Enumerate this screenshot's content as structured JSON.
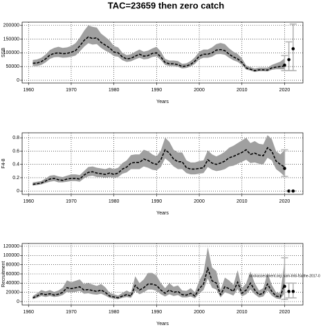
{
  "title": "TAC=23659 then zero catch",
  "chart_data": [
    {
      "type": "line",
      "xlabel": "Years",
      "ylabel": "SSB",
      "x": [
        1961,
        1962,
        1963,
        1964,
        1965,
        1966,
        1967,
        1968,
        1969,
        1970,
        1971,
        1972,
        1973,
        1974,
        1975,
        1976,
        1977,
        1978,
        1979,
        1980,
        1981,
        1982,
        1983,
        1984,
        1985,
        1986,
        1987,
        1988,
        1989,
        1990,
        1991,
        1992,
        1993,
        1994,
        1995,
        1996,
        1997,
        1998,
        1999,
        2000,
        2001,
        2002,
        2003,
        2004,
        2005,
        2006,
        2007,
        2008,
        2009,
        2010,
        2011,
        2012,
        2013,
        2014,
        2015,
        2016,
        2017,
        2018,
        2019,
        2020
      ],
      "series": [
        {
          "color": "#000000",
          "band_color": "#a0a0a0",
          "values": [
            62000,
            63000,
            68000,
            78000,
            92000,
            98000,
            100000,
            97000,
            98000,
            102000,
            108000,
            125000,
            145000,
            158000,
            152000,
            155000,
            138000,
            128000,
            118000,
            103000,
            100000,
            85000,
            78000,
            80000,
            88000,
            95000,
            88000,
            90000,
            98000,
            100000,
            85000,
            65000,
            60000,
            60000,
            57000,
            50000,
            52000,
            58000,
            70000,
            88000,
            95000,
            95000,
            100000,
            110000,
            112000,
            108000,
            95000,
            85000,
            78000,
            65000,
            45000,
            40000,
            35000,
            38000,
            38000,
            37000,
            45000,
            48000,
            50000,
            52000
          ],
          "lower": [
            52000,
            52000,
            56000,
            65000,
            78000,
            84000,
            85000,
            82000,
            83000,
            86000,
            90000,
            105000,
            122000,
            135000,
            130000,
            132000,
            118000,
            108000,
            100000,
            88000,
            86000,
            73000,
            67000,
            69000,
            76000,
            82000,
            76000,
            78000,
            85000,
            87000,
            74000,
            56000,
            52000,
            52000,
            49000,
            43000,
            45000,
            50000,
            60000,
            76000,
            82000,
            82000,
            86000,
            95000,
            96000,
            93000,
            82000,
            73000,
            67000,
            56000,
            39000,
            35000,
            30000,
            33000,
            33000,
            32000,
            38000,
            40000,
            40000,
            40000
          ],
          "upper": [
            74000,
            76000,
            82000,
            94000,
            110000,
            118000,
            122000,
            118000,
            120000,
            125000,
            135000,
            155000,
            180000,
            200000,
            195000,
            192000,
            170000,
            158000,
            145000,
            125000,
            120000,
            100000,
            92000,
            95000,
            104000,
            112000,
            104000,
            108000,
            116000,
            122000,
            104000,
            78000,
            72000,
            72000,
            70000,
            60000,
            62000,
            70000,
            84000,
            104000,
            112000,
            112000,
            120000,
            132000,
            136000,
            132000,
            116000,
            104000,
            96000,
            80000,
            54000,
            48000,
            43000,
            46000,
            46000,
            46000,
            56000,
            62000,
            68000,
            80000
          ]
        }
      ],
      "points": {
        "color": "#000000",
        "bar_color": "#b0b0b0",
        "x": [
          2020,
          2021,
          2022
        ],
        "values": [
          55000,
          75000,
          115000
        ],
        "lower": [
          35000,
          35000,
          35000
        ],
        "upper": [
          90000,
          140000,
          205000
        ]
      },
      "xlim": [
        1958.5,
        2024.3
      ],
      "ylim": [
        -10000,
        212000
      ],
      "xticks": [
        1960,
        1970,
        1980,
        1990,
        2000,
        2010,
        2020
      ],
      "yticks": [
        0,
        50000,
        100000,
        150000,
        200000
      ],
      "grid": true
    },
    {
      "type": "line",
      "xlabel": "Years",
      "ylabel": "F4-8",
      "x": [
        1961,
        1962,
        1963,
        1964,
        1965,
        1966,
        1967,
        1968,
        1969,
        1970,
        1971,
        1972,
        1973,
        1974,
        1975,
        1976,
        1977,
        1978,
        1979,
        1980,
        1981,
        1982,
        1983,
        1984,
        1985,
        1986,
        1987,
        1988,
        1989,
        1990,
        1991,
        1992,
        1993,
        1994,
        1995,
        1996,
        1997,
        1998,
        1999,
        2000,
        2001,
        2002,
        2003,
        2004,
        2005,
        2006,
        2007,
        2008,
        2009,
        2010,
        2011,
        2012,
        2013,
        2014,
        2015,
        2016,
        2017,
        2018,
        2019,
        2020
      ],
      "series": [
        {
          "color": "#000000",
          "band_color": "#a0a0a0",
          "values": [
            0.1,
            0.11,
            0.12,
            0.15,
            0.18,
            0.19,
            0.17,
            0.16,
            0.18,
            0.19,
            0.19,
            0.18,
            0.24,
            0.28,
            0.29,
            0.27,
            0.26,
            0.25,
            0.27,
            0.25,
            0.27,
            0.33,
            0.36,
            0.42,
            0.43,
            0.43,
            0.48,
            0.46,
            0.42,
            0.4,
            0.47,
            0.62,
            0.57,
            0.48,
            0.44,
            0.44,
            0.35,
            0.33,
            0.33,
            0.34,
            0.35,
            0.47,
            0.42,
            0.4,
            0.42,
            0.45,
            0.5,
            0.52,
            0.55,
            0.58,
            0.62,
            0.55,
            0.57,
            0.54,
            0.53,
            0.65,
            0.6,
            0.45,
            0.4,
            0.36
          ],
          "lower": [
            0.08,
            0.09,
            0.1,
            0.12,
            0.14,
            0.15,
            0.13,
            0.13,
            0.14,
            0.15,
            0.15,
            0.14,
            0.19,
            0.22,
            0.23,
            0.21,
            0.21,
            0.2,
            0.21,
            0.2,
            0.21,
            0.26,
            0.28,
            0.33,
            0.33,
            0.33,
            0.37,
            0.35,
            0.32,
            0.31,
            0.36,
            0.49,
            0.44,
            0.37,
            0.33,
            0.33,
            0.27,
            0.25,
            0.25,
            0.26,
            0.27,
            0.36,
            0.32,
            0.3,
            0.31,
            0.33,
            0.37,
            0.38,
            0.41,
            0.44,
            0.47,
            0.42,
            0.43,
            0.41,
            0.4,
            0.5,
            0.46,
            0.33,
            0.28,
            0.22
          ],
          "upper": [
            0.13,
            0.14,
            0.15,
            0.19,
            0.23,
            0.24,
            0.22,
            0.21,
            0.23,
            0.25,
            0.25,
            0.24,
            0.3,
            0.36,
            0.37,
            0.35,
            0.34,
            0.33,
            0.35,
            0.33,
            0.35,
            0.42,
            0.46,
            0.54,
            0.55,
            0.55,
            0.62,
            0.6,
            0.55,
            0.52,
            0.61,
            0.8,
            0.74,
            0.62,
            0.58,
            0.58,
            0.46,
            0.43,
            0.43,
            0.45,
            0.46,
            0.61,
            0.55,
            0.52,
            0.55,
            0.59,
            0.65,
            0.68,
            0.72,
            0.76,
            0.8,
            0.72,
            0.75,
            0.71,
            0.7,
            0.84,
            0.78,
            0.6,
            0.55,
            0.62
          ]
        }
      ],
      "points": {
        "color": "#000000",
        "bar_color": "#b0b0b0",
        "x": [
          2020,
          2021,
          2022
        ],
        "values": [
          0.34,
          0,
          0
        ],
        "lower": [
          0.22,
          0,
          0
        ],
        "upper": [
          0.62,
          0,
          0
        ]
      },
      "xlim": [
        1958.5,
        2024.3
      ],
      "ylim": [
        -0.05,
        0.875
      ],
      "xticks": [
        1960,
        1970,
        1980,
        1990,
        2000,
        2010,
        2020
      ],
      "yticks": [
        0,
        0.2,
        0.4,
        0.6,
        0.8
      ],
      "grid": true
    },
    {
      "type": "line",
      "xlabel": "Years",
      "ylabel": "Recruitment",
      "annotation": "stockassessment.org: sam-tmb-fsaithe-2017-0",
      "x": [
        1961,
        1962,
        1963,
        1964,
        1965,
        1966,
        1967,
        1968,
        1969,
        1970,
        1971,
        1972,
        1973,
        1974,
        1975,
        1976,
        1977,
        1978,
        1979,
        1980,
        1981,
        1982,
        1983,
        1984,
        1985,
        1986,
        1987,
        1988,
        1989,
        1990,
        1991,
        1992,
        1993,
        1994,
        1995,
        1996,
        1997,
        1998,
        1999,
        2000,
        2001,
        2002,
        2003,
        2004,
        2005,
        2006,
        2007,
        2008,
        2009,
        2010,
        2011,
        2012,
        2013,
        2014,
        2015,
        2016,
        2017,
        2018,
        2019,
        2020
      ],
      "series": [
        {
          "color": "#000000",
          "band_color": "#a0a0a0",
          "values": [
            8000,
            12000,
            17000,
            15000,
            17000,
            14000,
            16000,
            20000,
            30000,
            28000,
            30000,
            32000,
            25000,
            26000,
            24000,
            22000,
            25000,
            20000,
            12000,
            10000,
            8000,
            12000,
            15000,
            12000,
            35000,
            25000,
            30000,
            38000,
            38000,
            35000,
            25000,
            18000,
            25000,
            20000,
            22000,
            15000,
            14000,
            18000,
            12000,
            28000,
            38000,
            72000,
            45000,
            40000,
            15000,
            32000,
            28000,
            22000,
            42000,
            18000,
            25000,
            40000,
            25000,
            15000,
            18000,
            38000,
            22000,
            12000,
            10000,
            40000
          ],
          "lower": [
            5000,
            8000,
            12000,
            10000,
            12000,
            10000,
            11000,
            14000,
            21000,
            20000,
            21000,
            23000,
            17000,
            18000,
            16000,
            15000,
            17000,
            13000,
            8000,
            6000,
            5000,
            8000,
            10000,
            8000,
            23000,
            16000,
            20000,
            26000,
            26000,
            23000,
            16000,
            11000,
            16000,
            12000,
            14000,
            9000,
            9000,
            11000,
            7000,
            18000,
            25000,
            50000,
            30000,
            26000,
            9000,
            20000,
            17000,
            13000,
            27000,
            11000,
            16000,
            26000,
            16000,
            9000,
            11000,
            24000,
            13000,
            7000,
            5000,
            18000
          ],
          "upper": [
            12000,
            18000,
            25000,
            22000,
            25000,
            21000,
            24000,
            30000,
            46000,
            42000,
            45000,
            48000,
            38000,
            40000,
            37000,
            34000,
            38000,
            31000,
            19000,
            16000,
            13000,
            19000,
            24000,
            19000,
            55000,
            40000,
            48000,
            62000,
            62000,
            56000,
            40000,
            29000,
            40000,
            32000,
            35000,
            24000,
            23000,
            29000,
            20000,
            45000,
            62000,
            118000,
            74000,
            66000,
            25000,
            52000,
            46000,
            36000,
            68000,
            29000,
            40000,
            65000,
            40000,
            24000,
            29000,
            62000,
            36000,
            20000,
            18000,
            88000
          ]
        }
      ],
      "points": {
        "color": "#000000",
        "bar_color": "#b0b0b0",
        "x": [
          2020,
          2021,
          2022
        ],
        "values": [
          33000,
          22000,
          22000
        ],
        "lower": [
          5000,
          8000,
          8000
        ],
        "upper": [
          95000,
          40000,
          40000
        ]
      },
      "xlim": [
        1958.5,
        2024.3
      ],
      "ylim": [
        -7500,
        126000
      ],
      "xticks": [
        1960,
        1970,
        1980,
        1990,
        2000,
        2010,
        2020
      ],
      "yticks": [
        0,
        20000,
        40000,
        60000,
        80000,
        100000,
        120000
      ],
      "grid": true
    }
  ]
}
